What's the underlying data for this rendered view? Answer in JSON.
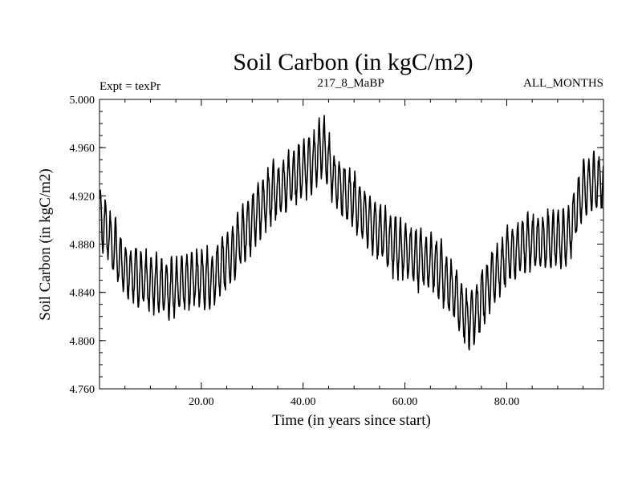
{
  "chart_data": {
    "type": "line",
    "title": "Soil Carbon (in kgC/m2)",
    "subtitle_left": "Expt = texPr",
    "subtitle_center": "217_8_MaBP",
    "subtitle_right": "ALL_MONTHS",
    "xlabel": "Time (in years since start)",
    "ylabel": "Soil Carbon (in kgC/m2)",
    "xlim": [
      0,
      99
    ],
    "ylim": [
      4.76,
      5.0
    ],
    "x_ticks": [
      20,
      40,
      60,
      80
    ],
    "x_tick_labels": [
      "20.00",
      "40.00",
      "60.00",
      "80.00"
    ],
    "y_ticks": [
      4.76,
      4.8,
      4.84,
      4.88,
      4.92,
      4.96,
      5.0
    ],
    "y_tick_labels": [
      "4.760",
      "4.800",
      "4.840",
      "4.880",
      "4.920",
      "4.960",
      "5.000"
    ],
    "series": [
      {
        "name": "Soil Carbon",
        "sampling": "monthly",
        "x_start": 0,
        "x_step": 0.0833,
        "trend_points": [
          [
            0,
            4.905
          ],
          [
            2,
            4.885
          ],
          [
            4,
            4.865
          ],
          [
            6,
            4.855
          ],
          [
            10,
            4.848
          ],
          [
            14,
            4.842
          ],
          [
            18,
            4.852
          ],
          [
            22,
            4.85
          ],
          [
            26,
            4.872
          ],
          [
            30,
            4.9
          ],
          [
            34,
            4.922
          ],
          [
            38,
            4.935
          ],
          [
            42,
            4.95
          ],
          [
            44,
            4.962
          ],
          [
            46,
            4.935
          ],
          [
            50,
            4.915
          ],
          [
            54,
            4.895
          ],
          [
            58,
            4.878
          ],
          [
            62,
            4.87
          ],
          [
            66,
            4.862
          ],
          [
            70,
            4.838
          ],
          [
            72,
            4.818
          ],
          [
            74,
            4.825
          ],
          [
            77,
            4.85
          ],
          [
            80,
            4.87
          ],
          [
            84,
            4.88
          ],
          [
            88,
            4.882
          ],
          [
            92,
            4.885
          ],
          [
            95,
            4.925
          ],
          [
            99,
            4.935
          ]
        ],
        "seasonal_amplitude": 0.022,
        "y_min_observed": 4.785,
        "y_max_observed": 4.997
      }
    ]
  }
}
